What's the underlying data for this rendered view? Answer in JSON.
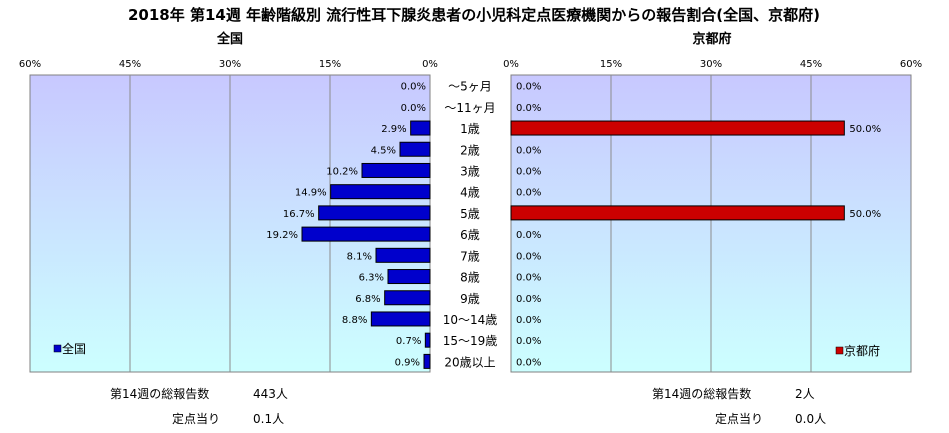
{
  "title": "2018年 第14週 年齢階級別 流行性耳下腺炎患者の小児科定点医療機関からの報告割合(全国、京都府)",
  "colors": {
    "national": "#0000cc",
    "kyoto": "#cc0000",
    "plot_bg_top": "#c8c8ff",
    "plot_bg_bottom": "#ccffff"
  },
  "chart_data": [
    {
      "type": "bar",
      "orientation": "horizontal",
      "direction": "right-to-left",
      "title": "全国",
      "xlim": [
        0,
        60
      ],
      "ticks": [
        "60%",
        "45%",
        "30%",
        "15%",
        "0%"
      ],
      "grid": true,
      "legend": {
        "position": "bottom-left",
        "label": "全国"
      },
      "categories": [
        "～5ヶ月",
        "～11ヶ月",
        "1歳",
        "2歳",
        "3歳",
        "4歳",
        "5歳",
        "6歳",
        "7歳",
        "8歳",
        "9歳",
        "10～14歳",
        "15～19歳",
        "20歳以上"
      ],
      "series": [
        {
          "name": "全国",
          "values": [
            0.0,
            0.0,
            2.9,
            4.5,
            10.2,
            14.9,
            16.7,
            19.2,
            8.1,
            6.3,
            6.8,
            8.8,
            0.7,
            0.9
          ]
        }
      ],
      "labels": [
        "0.0%",
        "0.0%",
        "2.9%",
        "4.5%",
        "10.2%",
        "14.9%",
        "16.7%",
        "19.2%",
        "8.1%",
        "6.3%",
        "6.8%",
        "8.8%",
        "0.7%",
        "0.9%"
      ]
    },
    {
      "type": "bar",
      "orientation": "horizontal",
      "direction": "left-to-right",
      "title": "京都府",
      "xlim": [
        0,
        60
      ],
      "ticks": [
        "0%",
        "15%",
        "30%",
        "45%",
        "60%"
      ],
      "grid": true,
      "legend": {
        "position": "bottom-right",
        "label": "京都府"
      },
      "categories": [
        "～5ヶ月",
        "～11ヶ月",
        "1歳",
        "2歳",
        "3歳",
        "4歳",
        "5歳",
        "6歳",
        "7歳",
        "8歳",
        "9歳",
        "10～14歳",
        "15～19歳",
        "20歳以上"
      ],
      "series": [
        {
          "name": "京都府",
          "values": [
            0.0,
            0.0,
            50.0,
            0.0,
            0.0,
            0.0,
            50.0,
            0.0,
            0.0,
            0.0,
            0.0,
            0.0,
            0.0,
            0.0
          ]
        }
      ],
      "labels": [
        "0.0%",
        "0.0%",
        "50.0%",
        "0.0%",
        "0.0%",
        "0.0%",
        "50.0%",
        "0.0%",
        "0.0%",
        "0.0%",
        "0.0%",
        "0.0%",
        "0.0%",
        "0.0%"
      ]
    }
  ],
  "footer": {
    "national": {
      "total_label": "第14週の総報告数",
      "total_value": "443人",
      "per_label": "定点当り",
      "per_value": "0.1人"
    },
    "kyoto": {
      "total_label": "第14週の総報告数",
      "total_value": "2人",
      "per_label": "定点当り",
      "per_value": "0.0人"
    }
  }
}
